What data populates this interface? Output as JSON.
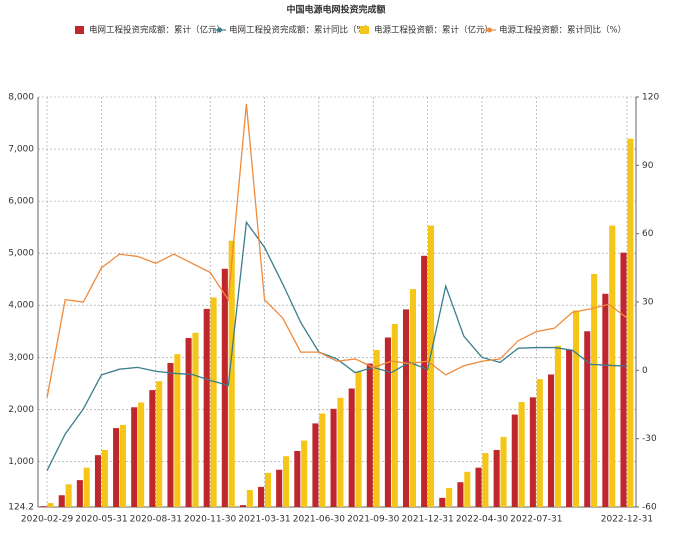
{
  "chart_data": {
    "type": "bar",
    "title": "中国电源电网投资完成额",
    "categories": [
      "2020-02-29",
      null,
      null,
      "2020-05-31",
      null,
      null,
      "2020-08-31",
      null,
      null,
      "2020-11-30",
      null,
      null,
      "2021-03-31",
      null,
      null,
      "2021-06-30",
      null,
      null,
      "2021-09-30",
      null,
      null,
      "2021-12-31",
      null,
      null,
      "2022-04-30",
      null,
      null,
      "2022-07-31",
      null,
      null,
      null,
      null,
      "2022-12-31"
    ],
    "series": [
      {
        "name": "电网工程投资完成额：累计（亿元）",
        "type": "bar",
        "color": "#c0272d",
        "values": [
          140,
          350,
          640,
          1120,
          1640,
          2040,
          2370,
          2890,
          3370,
          3930,
          4700,
          160,
          510,
          840,
          1200,
          1730,
          2010,
          2400,
          2880,
          3380,
          3920,
          4950,
          300,
          600,
          880,
          1220,
          1900,
          2230,
          2670,
          3150,
          3500,
          4220,
          5010
        ]
      },
      {
        "name": "电网工程投资完成额：累计同比（%）",
        "type": "line",
        "axis": "y2",
        "color": "#3a7d8c",
        "values": [
          -44,
          -28,
          -17,
          -2,
          0.5,
          1.3,
          -0.4,
          -1.3,
          -1.8,
          -4.4,
          -6.6,
          65,
          54,
          38,
          21,
          8,
          5,
          -1,
          1.3,
          -1,
          3.5,
          0.4,
          37,
          15,
          5.7,
          3.5,
          9.7,
          10,
          10,
          8.8,
          2.6,
          2.2,
          1.8
        ]
      },
      {
        "name": "电源工程投资额：累计（亿元）",
        "type": "bar",
        "color": "#f5c518",
        "values": [
          200,
          560,
          880,
          1220,
          1700,
          2130,
          2540,
          3060,
          3470,
          4150,
          5240,
          450,
          780,
          1100,
          1400,
          1920,
          2220,
          2720,
          3140,
          3640,
          4310,
          5530,
          490,
          800,
          1160,
          1470,
          2140,
          2580,
          3220,
          3900,
          4600,
          5530,
          7200
        ]
      },
      {
        "name": "电源工程投资额：累计同比（%）",
        "type": "line",
        "axis": "y2",
        "color": "#f08a3c",
        "values": [
          -12,
          31,
          30,
          45,
          51,
          50,
          47,
          51,
          47,
          43,
          31,
          117,
          31,
          23,
          8,
          8,
          4,
          5,
          1.3,
          4,
          3,
          4,
          -2,
          2,
          4,
          5,
          13,
          17,
          18.5,
          25.5,
          27,
          29,
          23
        ]
      }
    ],
    "ylim": [
      124.2,
      8000
    ],
    "yticks": [
      124.2,
      {
        "value": 1000,
        "label": "1,000"
      },
      {
        "value": 2000,
        "label": "2,000"
      },
      {
        "value": 3000,
        "label": "3,000"
      },
      {
        "value": 4000,
        "label": "4,000"
      },
      {
        "value": 5000,
        "label": "5,000"
      },
      {
        "value": 6000,
        "label": "6,000"
      },
      {
        "value": 7000,
        "label": "7,000"
      },
      {
        "value": 8000,
        "label": "8,000"
      }
    ],
    "y2lim": [
      -60,
      120
    ],
    "y2ticks": [
      -60,
      -30,
      0,
      30,
      60,
      90,
      120
    ],
    "grid": true
  }
}
